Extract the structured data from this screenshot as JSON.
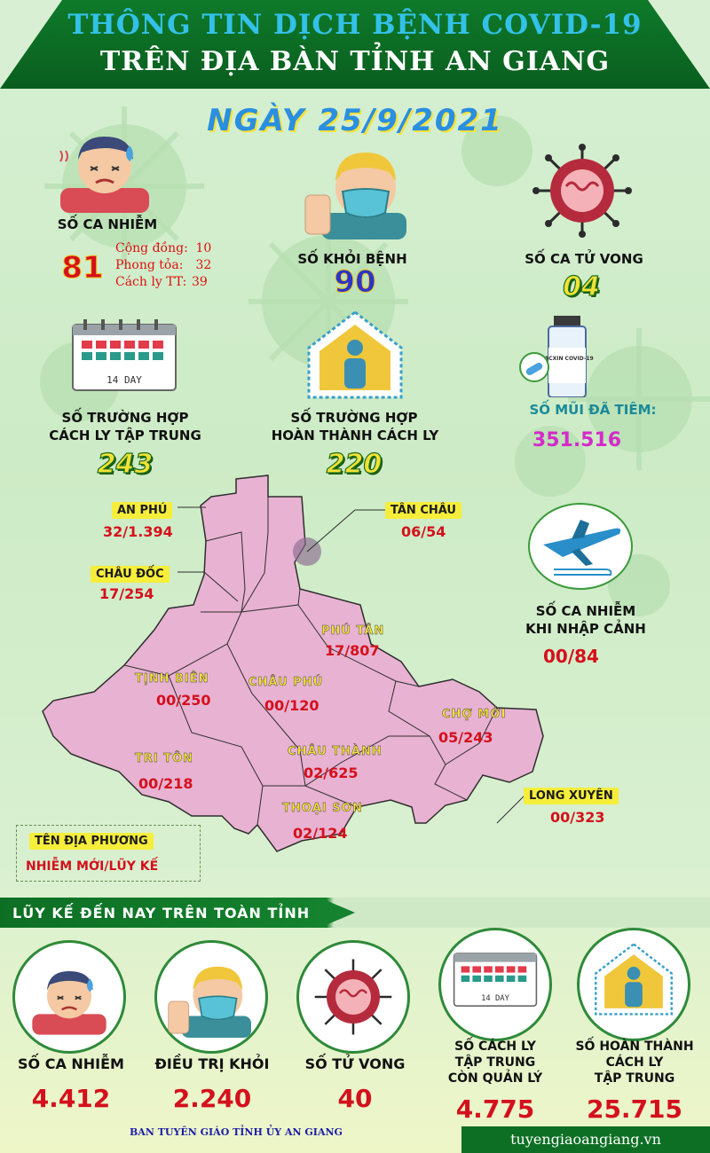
{
  "header": {
    "title_line1": "THÔNG TIN DỊCH BỆNH COVID-19",
    "title_line2": "TRÊN ĐỊA BÀN TỈNH AN GIANG",
    "date": "NGÀY 25/9/2021"
  },
  "daily": {
    "cases_label": "SỐ CA NHIỄM",
    "cases_value": "81",
    "cases_breakdown": [
      {
        "label": "Cộng đồng:",
        "value": "10"
      },
      {
        "label": "Phong tỏa:",
        "value": "32"
      },
      {
        "label": "Cách ly TT:",
        "value": "39"
      }
    ],
    "recovered_label": "SỐ KHỎI BỆNH",
    "recovered_value": "90",
    "deaths_label": "SỐ CA TỬ VONG",
    "deaths_value": "04",
    "quarantine_label_1": "SỐ TRƯỜNG HỢP",
    "quarantine_label_2": "CÁCH LY TẬP TRUNG",
    "quarantine_value": "243",
    "completed_label_1": "SỐ TRƯỜNG HỢP",
    "completed_label_2": "HOÀN THÀNH CÁCH LY",
    "completed_value": "220",
    "vaccine_label": "SỐ MŨI ĐÃ TIÊM:",
    "vaccine_value": "351.516",
    "calendar_text": "14 DAY",
    "vaccine_vial_text": "VACXIN COVID-19"
  },
  "map": {
    "regions": [
      {
        "name": "AN PHÚ",
        "value": "32/1.394"
      },
      {
        "name": "TÂN CHÂU",
        "value": "06/54"
      },
      {
        "name": "CHÂU ĐỐC",
        "value": "17/254"
      },
      {
        "name": "PHÚ TÂN",
        "value": "17/807"
      },
      {
        "name": "TỊNH BIÊN",
        "value": "00/250"
      },
      {
        "name": "CHÂU PHÚ",
        "value": "00/120"
      },
      {
        "name": "CHỢ MỚI",
        "value": "05/243"
      },
      {
        "name": "TRI TÔN",
        "value": "00/218"
      },
      {
        "name": "CHÂU THÀNH",
        "value": "02/625"
      },
      {
        "name": "THOẠI SƠN",
        "value": "02/124"
      },
      {
        "name": "LONG XUYÊN",
        "value": "00/323"
      }
    ],
    "legend_name": "TÊN ĐỊA PHƯƠNG",
    "legend_value": "NHIỄM MỚI/LŨY KẾ"
  },
  "imported": {
    "label_1": "SỐ CA NHIỄM",
    "label_2": "KHI NHẬP CẢNH",
    "value": "00/84"
  },
  "cumulative": {
    "title": "LŨY KẾ ĐẾN NAY TRÊN TOÀN TỈNH",
    "items": [
      {
        "label": "SỐ CA NHIỄM",
        "value": "4.412"
      },
      {
        "label": "ĐIỀU TRỊ KHỎI",
        "value": "2.240"
      },
      {
        "label": "SỐ TỬ VONG",
        "value": "40"
      },
      {
        "label_1": "SỐ CÁCH LY",
        "label_2": "TẬP TRUNG",
        "label_3": "CÒN QUẢN LÝ",
        "value": "4.775"
      },
      {
        "label_1": "SỐ HOÀN THÀNH",
        "label_2": "CÁCH LY",
        "label_3": "TẬP TRUNG",
        "value": "25.715"
      }
    ]
  },
  "footer": {
    "left": "BAN TUYÊN GIÁO TỈNH ỦY AN GIANG",
    "right": "tuyengiaoangiang.vn"
  },
  "icons": [
    "sick-person-icon",
    "masked-person-icon",
    "virus-icon",
    "calendar-icon",
    "quarantine-house-icon",
    "vaccine-vial-icon",
    "airplane-icon"
  ],
  "colors": {
    "header_green": "#0a5e1f",
    "number_red": "#d4101c",
    "map_pink": "#e8b2d2",
    "title_blue": "#33c1e8"
  }
}
